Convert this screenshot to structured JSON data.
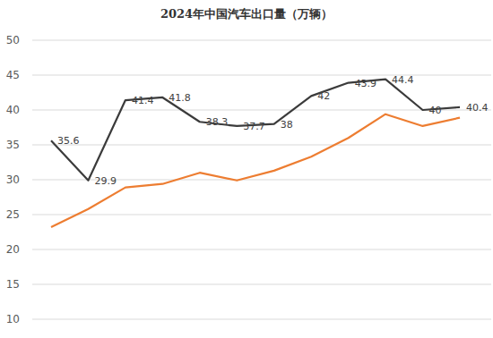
{
  "chart_data": {
    "type": "line",
    "title": "2024年中国汽车出口量（万辆）",
    "categories": [
      null,
      null,
      null,
      null,
      null,
      null,
      null,
      null,
      null,
      null,
      null,
      null
    ],
    "series": [
      {
        "color": "#3b3b3b",
        "line_style": "solid",
        "data_labels": true,
        "values": [
          35.6,
          29.9,
          41.4,
          41.8,
          38.3,
          37.7,
          38,
          42,
          43.9,
          44.4,
          40,
          40.4
        ]
      },
      {
        "color": "#ed7d31",
        "line_style": "solid",
        "data_labels": false,
        "values": [
          23.2,
          25.8,
          28.9,
          29.4,
          31.0,
          29.9,
          31.3,
          33.3,
          36.0,
          39.4,
          37.7,
          38.9
        ]
      }
    ],
    "ylim": [
      10,
      50
    ],
    "yticks": [
      10,
      15,
      20,
      25,
      30,
      35,
      40,
      45,
      50
    ],
    "grid": true,
    "tick_labels": "y"
  }
}
